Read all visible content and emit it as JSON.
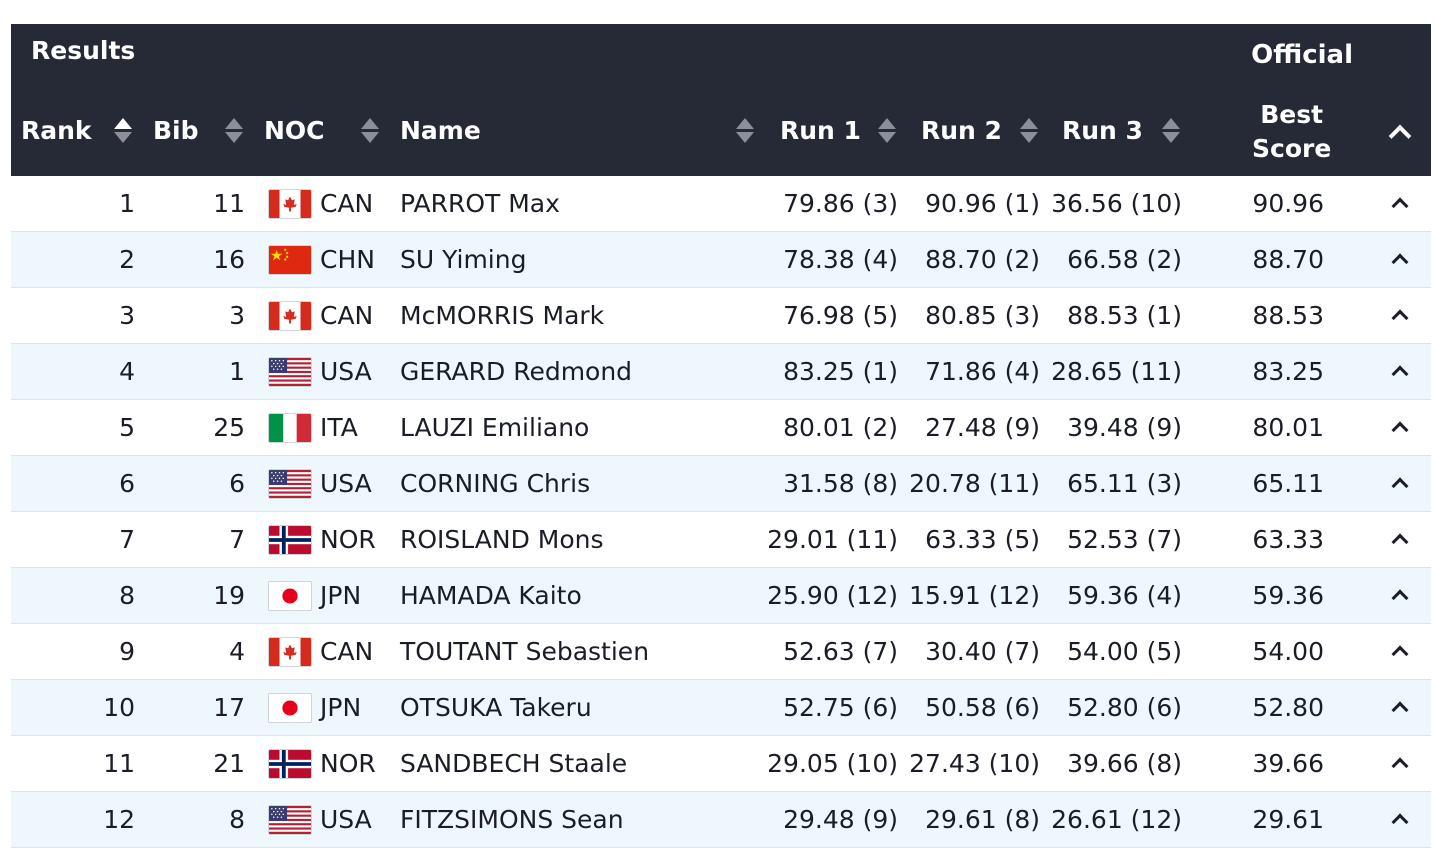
{
  "table": {
    "title": "Results",
    "status": "Official",
    "columns": {
      "rank": "Rank",
      "bib": "Bib",
      "noc": "NOC",
      "name": "Name",
      "run1": "Run 1",
      "run2": "Run 2",
      "run3": "Run 3",
      "best_line1": "Best",
      "best_line2": "Score"
    },
    "colors": {
      "header_bg": "#252a36",
      "row_alt_bg": "#eef7fc"
    },
    "rows": [
      {
        "rank": "1",
        "bib": "11",
        "flag": "canada-flag-icon",
        "noc": "CAN",
        "name": "PARROT Max",
        "run1": "79.86 (3)",
        "run2": "90.96 (1)",
        "run3": "36.56 (10)",
        "best": "90.96"
      },
      {
        "rank": "2",
        "bib": "16",
        "flag": "china-flag-icon",
        "noc": "CHN",
        "name": "SU Yiming",
        "run1": "78.38 (4)",
        "run2": "88.70 (2)",
        "run3": "66.58 (2)",
        "best": "88.70"
      },
      {
        "rank": "3",
        "bib": "3",
        "flag": "canada-flag-icon",
        "noc": "CAN",
        "name": "McMORRIS Mark",
        "run1": "76.98 (5)",
        "run2": "80.85 (3)",
        "run3": "88.53 (1)",
        "best": "88.53"
      },
      {
        "rank": "4",
        "bib": "1",
        "flag": "usa-flag-icon",
        "noc": "USA",
        "name": "GERARD Redmond",
        "run1": "83.25 (1)",
        "run2": "71.86 (4)",
        "run3": "28.65 (11)",
        "best": "83.25"
      },
      {
        "rank": "5",
        "bib": "25",
        "flag": "italy-flag-icon",
        "noc": "ITA",
        "name": "LAUZI Emiliano",
        "run1": "80.01 (2)",
        "run2": "27.48 (9)",
        "run3": "39.48 (9)",
        "best": "80.01"
      },
      {
        "rank": "6",
        "bib": "6",
        "flag": "usa-flag-icon",
        "noc": "USA",
        "name": "CORNING Chris",
        "run1": "31.58 (8)",
        "run2": "20.78 (11)",
        "run3": "65.11 (3)",
        "best": "65.11"
      },
      {
        "rank": "7",
        "bib": "7",
        "flag": "norway-flag-icon",
        "noc": "NOR",
        "name": "ROISLAND Mons",
        "run1": "29.01 (11)",
        "run2": "63.33 (5)",
        "run3": "52.53 (7)",
        "best": "63.33"
      },
      {
        "rank": "8",
        "bib": "19",
        "flag": "japan-flag-icon",
        "noc": "JPN",
        "name": "HAMADA Kaito",
        "run1": "25.90 (12)",
        "run2": "15.91 (12)",
        "run3": "59.36 (4)",
        "best": "59.36"
      },
      {
        "rank": "9",
        "bib": "4",
        "flag": "canada-flag-icon",
        "noc": "CAN",
        "name": "TOUTANT Sebastien",
        "run1": "52.63 (7)",
        "run2": "30.40 (7)",
        "run3": "54.00 (5)",
        "best": "54.00"
      },
      {
        "rank": "10",
        "bib": "17",
        "flag": "japan-flag-icon",
        "noc": "JPN",
        "name": "OTSUKA Takeru",
        "run1": "52.75 (6)",
        "run2": "50.58 (6)",
        "run3": "52.80 (6)",
        "best": "52.80"
      },
      {
        "rank": "11",
        "bib": "21",
        "flag": "norway-flag-icon",
        "noc": "NOR",
        "name": "SANDBECH Staale",
        "run1": "29.05 (10)",
        "run2": "27.43 (10)",
        "run3": "39.66 (8)",
        "best": "39.66"
      },
      {
        "rank": "12",
        "bib": "8",
        "flag": "usa-flag-icon",
        "noc": "USA",
        "name": "FITZSIMONS Sean",
        "run1": "29.48 (9)",
        "run2": "29.61 (8)",
        "run3": "26.61 (12)",
        "best": "29.61"
      }
    ]
  }
}
